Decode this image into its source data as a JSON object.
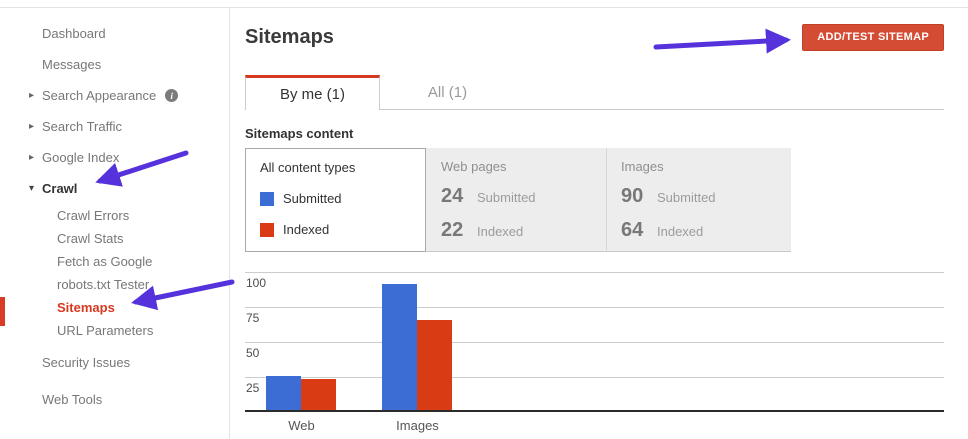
{
  "icons": {
    "collapsed_expander": "▸",
    "expanded_expander": "▾",
    "info": "i"
  },
  "colors": {
    "accent_red": "#d54c35",
    "active_nav_red": "#d6391f",
    "arrow_purple": "#5632dd",
    "chart_blue": "#3c6dd5",
    "chart_red": "#d93c15"
  },
  "sidebar": {
    "items": [
      {
        "label": "Dashboard"
      },
      {
        "label": "Messages"
      },
      {
        "label": "Search Appearance",
        "expander": "collapsed",
        "info": true
      },
      {
        "label": "Search Traffic",
        "expander": "collapsed"
      },
      {
        "label": "Google Index",
        "expander": "collapsed"
      },
      {
        "label": "Crawl",
        "expander": "expanded",
        "bold": true
      },
      {
        "label": "Crawl Errors",
        "sub": true
      },
      {
        "label": "Crawl Stats",
        "sub": true
      },
      {
        "label": "Fetch as Google",
        "sub": true
      },
      {
        "label": "robots.txt Tester",
        "sub": true
      },
      {
        "label": "Sitemaps",
        "sub": true,
        "active": true
      },
      {
        "label": "URL Parameters",
        "sub": true
      },
      {
        "label": "Security Issues"
      },
      {
        "label": "Web Tools"
      }
    ]
  },
  "header": {
    "title": "Sitemaps",
    "add_test_button": "ADD/TEST SITEMAP"
  },
  "tabs": [
    {
      "label": "By me (1)",
      "active": true
    },
    {
      "label": "All (1)",
      "active": false
    }
  ],
  "content": {
    "section_title": "Sitemaps content",
    "legend": {
      "title": "All content types",
      "items": [
        {
          "label": "Submitted",
          "color": "#3c6dd5"
        },
        {
          "label": "Indexed",
          "color": "#d93c15"
        }
      ]
    },
    "stats": [
      {
        "title": "Web pages",
        "rows": [
          {
            "value": "24",
            "label": "Submitted"
          },
          {
            "value": "22",
            "label": "Indexed"
          }
        ]
      },
      {
        "title": "Images",
        "rows": [
          {
            "value": "90",
            "label": "Submitted"
          },
          {
            "value": "64",
            "label": "Indexed"
          }
        ]
      }
    ]
  },
  "chart_data": {
    "type": "bar",
    "categories": [
      "Web",
      "Images"
    ],
    "series": [
      {
        "name": "Submitted",
        "color": "#3c6dd5",
        "values": [
          24,
          90
        ]
      },
      {
        "name": "Indexed",
        "color": "#d93c15",
        "values": [
          22,
          64
        ]
      }
    ],
    "title": "",
    "xlabel": "",
    "ylabel": "",
    "ylim": [
      0,
      100
    ],
    "yticks": [
      25,
      50,
      75,
      100
    ],
    "grid": true,
    "legend_position": "left-panel"
  }
}
